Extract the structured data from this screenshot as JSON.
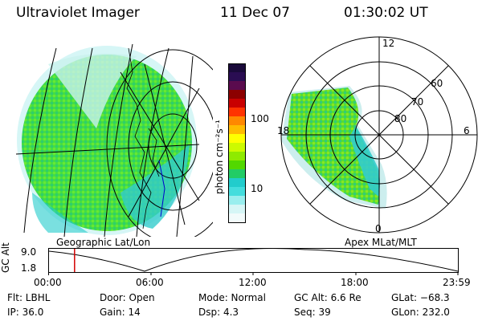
{
  "header": {
    "instrument": "Ultraviolet Imager",
    "date": "11 Dec 07",
    "time": "01:30:02 UT"
  },
  "colorbar": {
    "unit_label": "photon cm⁻²s⁻¹",
    "ticks": [
      "100",
      "10"
    ],
    "colors": [
      "#1a0a3a",
      "#2a0d52",
      "#5a0b4e",
      "#8c0000",
      "#c90000",
      "#ff3300",
      "#ff8800",
      "#ffbb00",
      "#ffff00",
      "#cdfa00",
      "#8fea00",
      "#52d800",
      "#22cc66",
      "#22cccc",
      "#44dddd",
      "#99eeee",
      "#d6f6f6",
      "#f2fbfb"
    ]
  },
  "geo_panel": {
    "caption": "Geographic Lat/Lon"
  },
  "apex_panel": {
    "caption": "Apex MLat/MLT",
    "mlt_labels": {
      "top": "12",
      "left": "18",
      "right": "6",
      "bottom": "0"
    },
    "mlat_labels": [
      "60",
      "70",
      "80"
    ]
  },
  "altitude_plot": {
    "axis_label": "GC Alt",
    "y_ticks": [
      "9.0",
      "1.8"
    ],
    "x_ticks": [
      "00:00",
      "06:00",
      "12:00",
      "18:00",
      "23:59"
    ],
    "marker_time": "01:30",
    "marker_color": "#d40000"
  },
  "info": {
    "filter": "Flt: LBHL",
    "ip": "IP: 36.0",
    "door": "Door: Open",
    "gain": "Gain: 14",
    "mode": "Mode: Normal",
    "dsp": "Dsp:    4.3",
    "gc_alt": "GC Alt: 6.6 Re",
    "seq": "Seq: 39",
    "glat": "GLat: −68.3",
    "glon": "GLon: 232.0"
  }
}
